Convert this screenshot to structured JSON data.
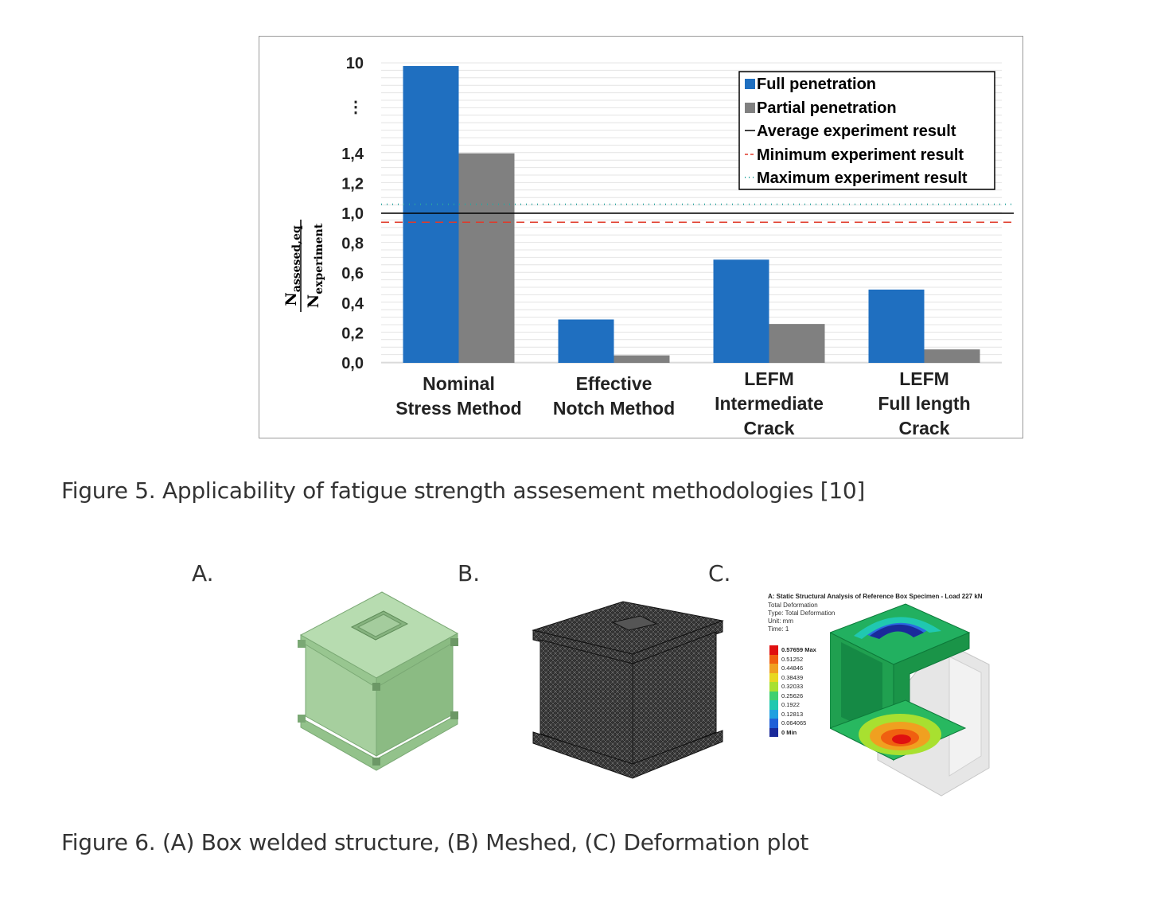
{
  "figure5": {
    "caption": "Figure 5. Applicability of fatigue strength assesement methodologies [10]"
  },
  "chart_data": {
    "type": "bar",
    "categories": [
      [
        "Nominal",
        "Stress Method"
      ],
      [
        "Effective",
        "Notch  Method"
      ],
      [
        "LEFM",
        "Intermediate",
        "Crack"
      ],
      [
        "LEFM",
        "Full length",
        "Crack"
      ]
    ],
    "series": [
      {
        "name": "Full penetration",
        "color": "#1f6fc0",
        "values": [
          9.7,
          0.29,
          0.69,
          0.49
        ]
      },
      {
        "name": "Partial penetration",
        "color": "#808080",
        "values": [
          1.41,
          0.05,
          0.26,
          0.09
        ]
      }
    ],
    "reference_lines": [
      {
        "name": "Average experiment result",
        "value": 1.0,
        "color": "#000000",
        "style": "solid"
      },
      {
        "name": "Minimum experiment result",
        "value": 0.94,
        "color": "#e03a2a",
        "style": "dashed"
      },
      {
        "name": "Maximum experiment result",
        "value": 1.06,
        "color": "#2aa5a0",
        "style": "dotted"
      }
    ],
    "yticks": [
      "0,0",
      "0,2",
      "0,4",
      "0,6",
      "0,8",
      "1,0",
      "1,2",
      "1,4",
      "⋮",
      "10"
    ],
    "ylabel": {
      "numerator": "N",
      "numerator_sub": "assesed,eq",
      "denominator": "N",
      "denominator_sub": "experiment"
    },
    "ylim": [
      0,
      10
    ],
    "axis_break": "between 1,4 and 10",
    "legend_position": "top-right",
    "grid": true
  },
  "figure6": {
    "caption": "Figure 6. (A) Box welded structure,  (B) Meshed, (C) Deformation plot",
    "panels": [
      {
        "letter": "A.",
        "icon": "green-box-model"
      },
      {
        "letter": "B.",
        "icon": "meshed-box-model"
      },
      {
        "letter": "C.",
        "icon": "deformation-contour"
      }
    ],
    "plot_c": {
      "title": "A: Static Structural Analysis of Reference Box Specimen - Load 227 kN",
      "lines": [
        "Total Deformation",
        "Type: Total Deformation",
        "Unit: mm",
        "Time: 1"
      ],
      "scale": [
        {
          "label": "0.57659 Max",
          "color": "#e01010"
        },
        {
          "label": "0.51252",
          "color": "#f06010"
        },
        {
          "label": "0.44846",
          "color": "#f0a020"
        },
        {
          "label": "0.38439",
          "color": "#e8d820"
        },
        {
          "label": "0.32033",
          "color": "#a8e030"
        },
        {
          "label": "0.25626",
          "color": "#40d070"
        },
        {
          "label": "0.1922",
          "color": "#20c8b0"
        },
        {
          "label": "0.12813",
          "color": "#20a0e0"
        },
        {
          "label": "0.064065",
          "color": "#2060d8"
        },
        {
          "label": "0 Min",
          "color": "#1a2a9a"
        }
      ]
    }
  }
}
